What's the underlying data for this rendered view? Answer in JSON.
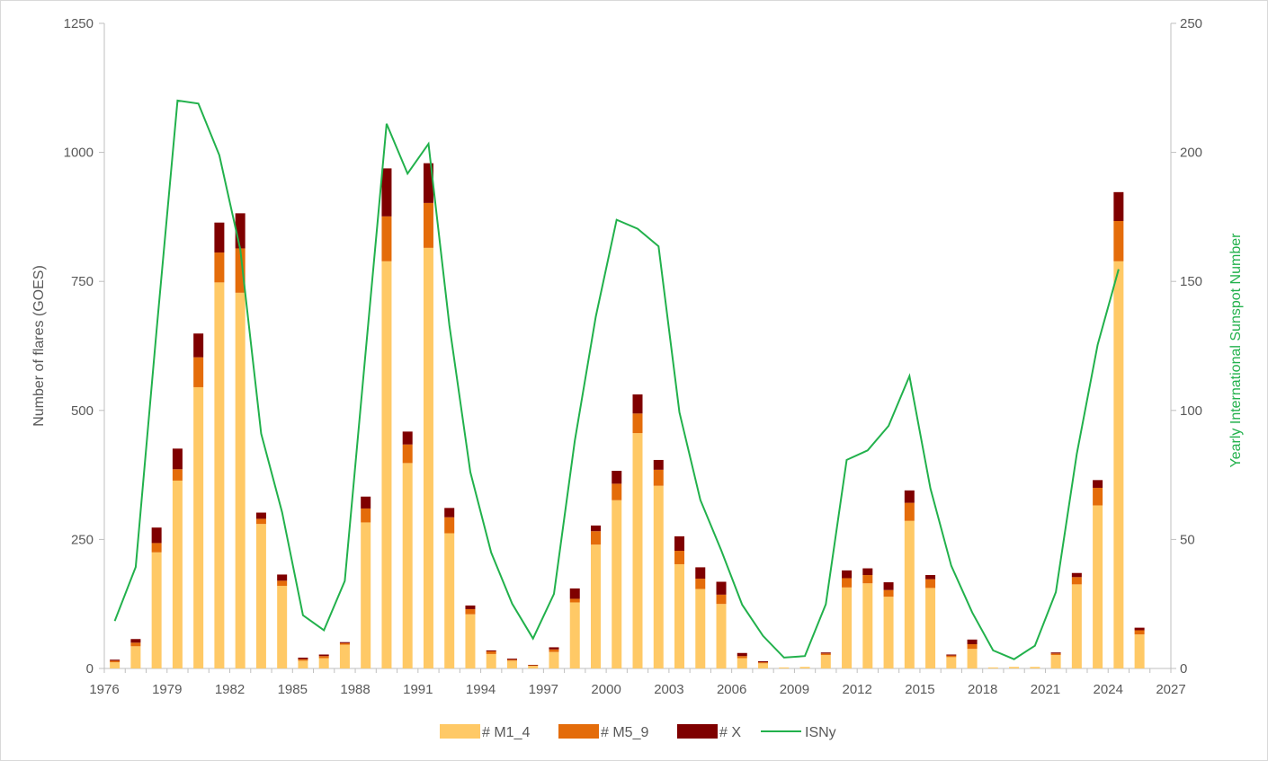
{
  "chart_data": {
    "type": "bar",
    "stacked": true,
    "title": "",
    "ylabel": "Number of flares (GOES)",
    "y2label": "Yearly International Sunspot Number",
    "ylim": [
      0,
      1250
    ],
    "y2lim": [
      0,
      250
    ],
    "xlim": [
      1976,
      2027
    ],
    "yticks": [
      0,
      250,
      500,
      750,
      1000,
      1250
    ],
    "y2ticks": [
      0,
      50,
      100,
      150,
      200,
      250
    ],
    "xticks": [
      1976,
      1979,
      1982,
      1985,
      1988,
      1991,
      1994,
      1997,
      2000,
      2003,
      2006,
      2009,
      2012,
      2015,
      2018,
      2021,
      2024,
      2027
    ],
    "grid": false,
    "legend_position": "bottom",
    "colors": {
      "m1_4": "#ffc966",
      "m5_9": "#e46c0a",
      "x": "#7f0000",
      "isn": "#22b14c",
      "axis": "#bfbfbf",
      "text": "#595959"
    },
    "years": [
      1976,
      1977,
      1978,
      1979,
      1980,
      1981,
      1982,
      1983,
      1984,
      1985,
      1986,
      1987,
      1988,
      1989,
      1990,
      1991,
      1992,
      1993,
      1994,
      1995,
      1996,
      1997,
      1998,
      1999,
      2000,
      2001,
      2002,
      2003,
      2004,
      2005,
      2006,
      2007,
      2008,
      2009,
      2010,
      2011,
      2012,
      2013,
      2014,
      2015,
      2016,
      2017,
      2018,
      2019,
      2020,
      2021,
      2022,
      2023,
      2024,
      2025
    ],
    "series": [
      {
        "name": "# M1_4",
        "key": "m1_4",
        "axis": "left",
        "values": [
          12,
          43,
          225,
          364,
          545,
          748,
          728,
          280,
          160,
          15,
          20,
          46,
          283,
          789,
          398,
          815,
          262,
          105,
          28,
          15,
          5,
          32,
          128,
          240,
          326,
          456,
          354,
          202,
          154,
          125,
          20,
          10,
          2,
          3,
          26,
          157,
          165,
          139,
          286,
          156,
          22,
          38,
          2,
          3,
          3,
          26,
          163,
          316,
          789,
          66
        ]
      },
      {
        "name": "# M5_9",
        "key": "m5_9",
        "axis": "left",
        "values": [
          3,
          7,
          18,
          22,
          58,
          58,
          86,
          10,
          10,
          3,
          4,
          3,
          27,
          87,
          36,
          87,
          31,
          10,
          5,
          2,
          1,
          5,
          7,
          26,
          32,
          38,
          31,
          26,
          20,
          18,
          4,
          2,
          0,
          0,
          3,
          18,
          16,
          13,
          35,
          17,
          3,
          9,
          0,
          0,
          0,
          3,
          14,
          34,
          78,
          8
        ]
      },
      {
        "name": "# X",
        "key": "x",
        "axis": "left",
        "values": [
          2,
          7,
          30,
          40,
          46,
          58,
          68,
          12,
          12,
          3,
          3,
          2,
          23,
          93,
          25,
          77,
          18,
          7,
          2,
          2,
          1,
          4,
          20,
          11,
          25,
          37,
          19,
          28,
          22,
          25,
          6,
          2,
          0,
          0,
          2,
          15,
          13,
          15,
          24,
          8,
          2,
          9,
          0,
          0,
          0,
          2,
          8,
          15,
          56,
          5
        ]
      },
      {
        "name": "ISNy",
        "key": "isn",
        "axis": "right",
        "type": "line",
        "values": [
          18.4,
          39.3,
          131.0,
          220.1,
          218.9,
          198.9,
          162.4,
          91.0,
          60.5,
          20.6,
          14.8,
          33.9,
          123.0,
          211.1,
          191.8,
          203.3,
          133.0,
          76.1,
          44.9,
          25.1,
          11.6,
          28.9,
          88.3,
          136.3,
          173.9,
          170.4,
          163.6,
          99.3,
          65.3,
          45.8,
          24.7,
          12.6,
          4.2,
          4.8,
          24.9,
          80.8,
          84.5,
          94.0,
          113.3,
          69.8,
          39.8,
          21.7,
          7.0,
          3.6,
          8.8,
          29.6,
          83.2,
          125.5,
          154.7,
          null
        ]
      }
    ]
  },
  "legend": [
    {
      "label": "# M1_4",
      "key": "m1_4",
      "kind": "swatch"
    },
    {
      "label": "# M5_9",
      "key": "m5_9",
      "kind": "swatch"
    },
    {
      "label": "# X",
      "key": "x",
      "kind": "swatch"
    },
    {
      "label": "ISNy",
      "key": "isn",
      "kind": "line"
    }
  ]
}
